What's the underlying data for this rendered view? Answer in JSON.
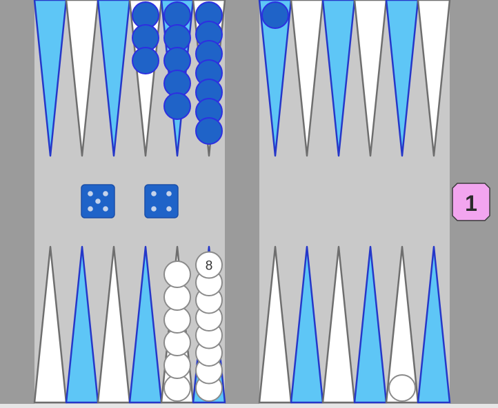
{
  "colors": {
    "frame": "#9b9b9b",
    "surface": "#c9c9c9",
    "point_blue_fill": "#5ec6f6",
    "point_blue_stroke": "#2537c9",
    "point_white_fill": "#ffffff",
    "point_white_stroke": "#6e6e6e",
    "checker_blue_fill": "#1f63c8",
    "checker_blue_stroke": "#2d2fe0",
    "checker_white_fill": "#ffffff",
    "checker_white_stroke": "#8a8a8a",
    "die_fill": "#1f63c8",
    "die_pip": "#c6d3ea",
    "cube_fill": "#f2a5ef"
  },
  "board": {
    "top_left_points": [
      {
        "color": "blue",
        "checkers": 0
      },
      {
        "color": "white",
        "checkers": 0
      },
      {
        "color": "blue",
        "checkers": 0
      },
      {
        "color": "white",
        "checkers": 3,
        "player": "blue"
      },
      {
        "color": "blue",
        "checkers": 5,
        "player": "blue"
      },
      {
        "color": "white",
        "checkers": 7,
        "player": "blue"
      }
    ],
    "top_right_points": [
      {
        "color": "blue",
        "checkers": 1,
        "player": "blue"
      },
      {
        "color": "white",
        "checkers": 0
      },
      {
        "color": "blue",
        "checkers": 0
      },
      {
        "color": "white",
        "checkers": 0
      },
      {
        "color": "blue",
        "checkers": 0
      },
      {
        "color": "white",
        "checkers": 0
      }
    ],
    "bottom_left_points": [
      {
        "color": "white",
        "checkers": 0
      },
      {
        "color": "blue",
        "checkers": 0
      },
      {
        "color": "white",
        "checkers": 0
      },
      {
        "color": "blue",
        "checkers": 0
      },
      {
        "color": "white",
        "checkers": 6,
        "player": "white"
      },
      {
        "color": "blue",
        "checkers": 8,
        "player": "white",
        "label": "8"
      }
    ],
    "bottom_right_points": [
      {
        "color": "white",
        "checkers": 0
      },
      {
        "color": "blue",
        "checkers": 0
      },
      {
        "color": "white",
        "checkers": 0
      },
      {
        "color": "blue",
        "checkers": 0
      },
      {
        "color": "white",
        "checkers": 1,
        "player": "white"
      },
      {
        "color": "blue",
        "checkers": 0
      }
    ]
  },
  "dice": [
    5,
    4
  ],
  "cube": {
    "value": "1"
  }
}
